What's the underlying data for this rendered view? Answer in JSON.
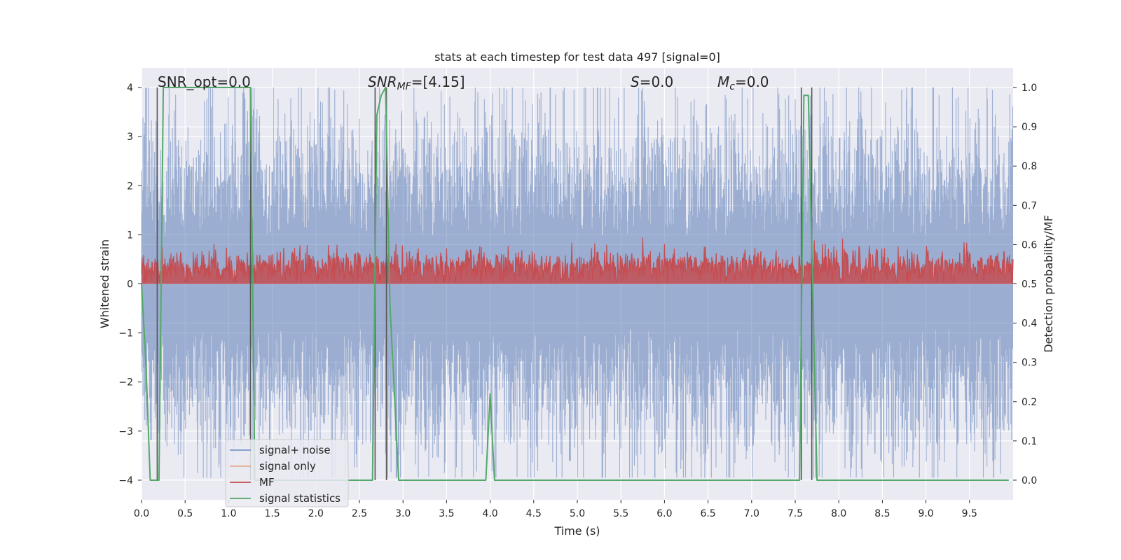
{
  "chart_data": {
    "type": "line",
    "title": "stats at each timestep for test data 497 [signal=0]",
    "xlabel": "Time (s)",
    "ylabel": "Whitened strain",
    "ylabel_right": "Detection probability/MF",
    "xlim": [
      0.0,
      10.0
    ],
    "ylim": [
      -4.4,
      4.4
    ],
    "ylim_right": [
      -0.05,
      1.05
    ],
    "x_ticks": [
      0.0,
      0.5,
      1.0,
      1.5,
      2.0,
      2.5,
      3.0,
      3.5,
      4.0,
      4.5,
      5.0,
      5.5,
      6.0,
      6.5,
      7.0,
      7.5,
      8.0,
      8.5,
      9.0,
      9.5
    ],
    "x_tick_labels": [
      "0.0",
      "0.5",
      "1.0",
      "1.5",
      "2.0",
      "2.5",
      "3.0",
      "3.5",
      "4.0",
      "4.5",
      "5.0",
      "5.5",
      "6.0",
      "6.5",
      "7.0",
      "7.5",
      "8.0",
      "8.5",
      "9.0",
      "9.5"
    ],
    "y_ticks": [
      -4,
      -3,
      -2,
      -1,
      0,
      1,
      2,
      3,
      4
    ],
    "y_tick_labels": [
      "−4",
      "−3",
      "−2",
      "−1",
      "0",
      "1",
      "2",
      "3",
      "4"
    ],
    "y_ticks_right": [
      0.0,
      0.1,
      0.2,
      0.3,
      0.4,
      0.5,
      0.6,
      0.7,
      0.8,
      0.9,
      1.0
    ],
    "y_tick_labels_right": [
      "0.0",
      "0.1",
      "0.2",
      "0.3",
      "0.4",
      "0.5",
      "0.6",
      "0.7",
      "0.8",
      "0.9",
      "1.0"
    ],
    "grid": true,
    "legend_position": "lower-left",
    "annotations": {
      "snr_opt": "SNR_opt=0.0",
      "snr_mf_main": "SNR",
      "snr_mf_sub": "MF",
      "snr_mf_value": "=[4.15]",
      "s_main": "S",
      "s_value": "=0.0",
      "mc_main": "M",
      "mc_sub": "c",
      "mc_value": "=0.0"
    },
    "vertical_markers_x": [
      0.18,
      1.25,
      2.68,
      2.81,
      7.57,
      7.69
    ],
    "series": [
      {
        "name": "signal+ noise",
        "color": "#4c72b0",
        "axis": "left",
        "noise_std": 0.85,
        "peak_upper_max": 4.0,
        "peak_lower_min": -3.95
      },
      {
        "name": "signal only",
        "color": "#dd8452",
        "axis": "left",
        "values_constant": 0.0
      },
      {
        "name": "MF",
        "color": "#c44e52",
        "axis": "left",
        "baseline": 0.0,
        "peak_max": 0.95,
        "typical_level": 0.35
      },
      {
        "name": "signal statistics",
        "color": "#55a868",
        "axis": "right",
        "x": [
          0.0,
          0.05,
          0.1,
          0.12,
          0.2,
          0.25,
          0.3,
          1.25,
          1.3,
          1.35,
          2.5,
          2.65,
          2.7,
          2.75,
          2.8,
          2.85,
          2.95,
          3.0,
          3.9,
          3.95,
          4.0,
          4.05,
          4.1,
          7.55,
          7.6,
          7.65,
          7.7,
          7.75,
          9.95
        ],
        "y": [
          0.5,
          0.3,
          0.0,
          0.0,
          0.0,
          1.0,
          1.0,
          1.0,
          0.0,
          0.0,
          0.0,
          0.0,
          0.93,
          0.98,
          1.0,
          0.45,
          0.0,
          0.0,
          0.0,
          0.0,
          0.22,
          0.0,
          0.0,
          0.0,
          0.98,
          0.98,
          0.5,
          0.0,
          0.0
        ]
      }
    ]
  }
}
